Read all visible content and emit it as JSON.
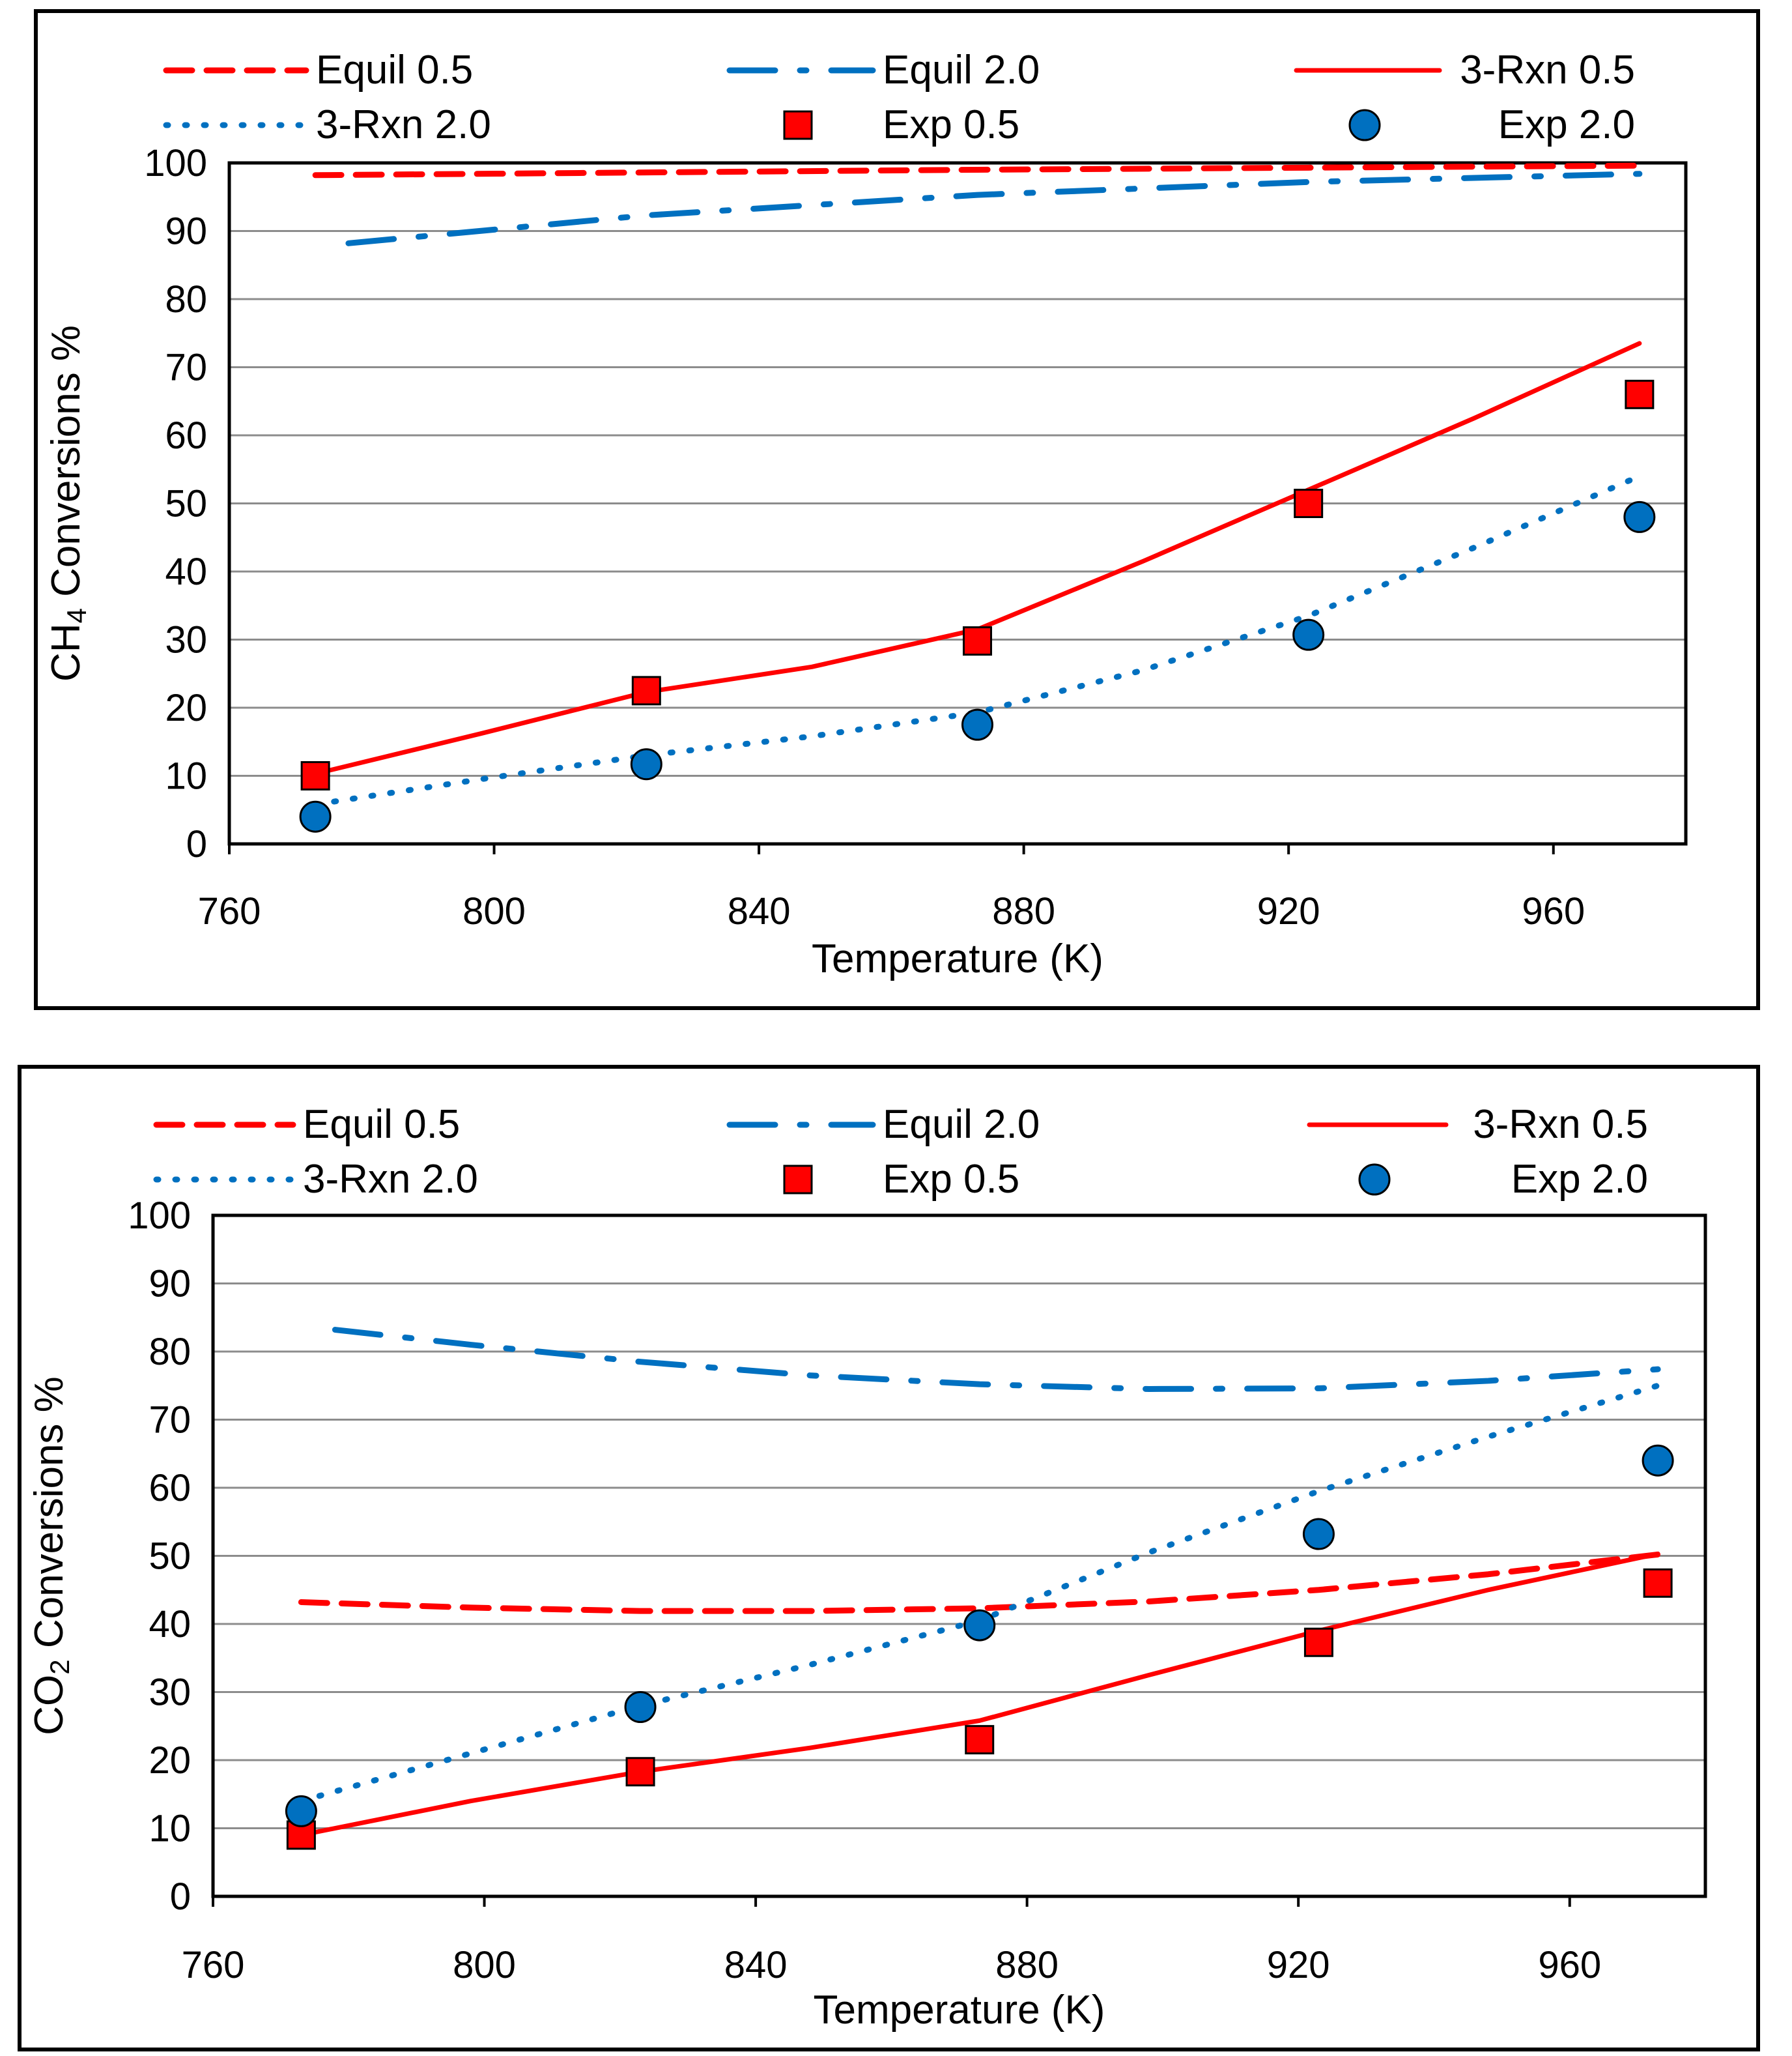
{
  "chart_data": [
    {
      "type": "line",
      "title": "",
      "xlabel": "Temperature (K)",
      "ylabel": "CH4 Conversions %",
      "xlim": [
        760,
        980
      ],
      "ylim": [
        0,
        100
      ],
      "xticks": [
        760,
        800,
        840,
        880,
        920,
        960
      ],
      "yticks": [
        0,
        10,
        20,
        30,
        40,
        50,
        60,
        70,
        80,
        90,
        100
      ],
      "grid": "horizontal",
      "legend_position": "top",
      "series": [
        {
          "name": "Equil 0.5",
          "kind": "line",
          "style": "dashed",
          "color": "#ff0000",
          "x": [
            773,
            823,
            873,
            923,
            973
          ],
          "y": [
            98.2,
            98.6,
            99.0,
            99.3,
            99.6
          ]
        },
        {
          "name": "Equil 2.0",
          "kind": "line",
          "style": "dashdot",
          "color": "#0070c0",
          "x": [
            778,
            823,
            873,
            923,
            973
          ],
          "y": [
            88.2,
            92.3,
            95.3,
            97.2,
            98.4
          ]
        },
        {
          "name": "3-Rxn 0.5",
          "kind": "line",
          "style": "solid",
          "color": "#ff0000",
          "x": [
            773,
            798,
            823,
            848,
            873,
            898,
            923,
            948,
            973
          ],
          "y": [
            10.3,
            16.2,
            22.3,
            26.0,
            31.5,
            41.5,
            52.0,
            62.5,
            73.5
          ]
        },
        {
          "name": "3-Rxn 2.0",
          "kind": "line",
          "style": "dotted",
          "color": "#0070c0",
          "x": [
            773,
            798,
            823,
            848,
            873,
            898,
            923,
            948,
            973
          ],
          "y": [
            5.8,
            9.5,
            13.0,
            15.8,
            19.3,
            25.5,
            33.5,
            43.5,
            54.0
          ]
        },
        {
          "name": "Exp 0.5",
          "kind": "marker",
          "marker": "square",
          "color": "#ff0000",
          "x": [
            773,
            823,
            873,
            923,
            973
          ],
          "y": [
            10,
            22.5,
            29.8,
            50,
            66
          ]
        },
        {
          "name": "Exp 2.0",
          "kind": "marker",
          "marker": "circle",
          "color": "#0070c0",
          "x": [
            773,
            823,
            873,
            923,
            973
          ],
          "y": [
            4,
            11.7,
            17.5,
            30.7,
            48
          ]
        }
      ]
    },
    {
      "type": "line",
      "title": "",
      "xlabel": "Temperature (K)",
      "ylabel": "CO2 Conversions %",
      "xlim": [
        760,
        980
      ],
      "ylim": [
        0,
        100
      ],
      "xticks": [
        760,
        800,
        840,
        880,
        920,
        960
      ],
      "yticks": [
        0,
        10,
        20,
        30,
        40,
        50,
        60,
        70,
        80,
        90,
        100
      ],
      "grid": "horizontal",
      "legend_position": "top",
      "series": [
        {
          "name": "Equil 0.5",
          "kind": "line",
          "style": "dashed",
          "color": "#ff0000",
          "x": [
            773,
            798,
            823,
            848,
            873,
            898,
            923,
            948,
            973
          ],
          "y": [
            43.2,
            42.4,
            41.9,
            41.9,
            42.3,
            43.3,
            45.0,
            47.3,
            50.2
          ]
        },
        {
          "name": "Equil 2.0",
          "kind": "line",
          "style": "dashdot",
          "color": "#0070c0",
          "x": [
            778,
            798,
            823,
            848,
            873,
            898,
            923,
            948,
            973
          ],
          "y": [
            83.2,
            81.0,
            78.5,
            76.5,
            75.2,
            74.5,
            74.6,
            75.7,
            77.4
          ]
        },
        {
          "name": "3-Rxn 0.5",
          "kind": "line",
          "style": "solid",
          "color": "#ff0000",
          "x": [
            773,
            798,
            823,
            848,
            873,
            898,
            923,
            948,
            973
          ],
          "y": [
            9.0,
            14.0,
            18.3,
            21.8,
            25.8,
            32.5,
            39.0,
            45.0,
            50.3
          ]
        },
        {
          "name": "3-Rxn 2.0",
          "kind": "line",
          "style": "dotted",
          "color": "#0070c0",
          "x": [
            773,
            798,
            823,
            848,
            873,
            898,
            923,
            948,
            973
          ],
          "y": [
            14.0,
            21.0,
            28.0,
            34.0,
            40.5,
            50.5,
            59.5,
            67.5,
            75.0
          ]
        },
        {
          "name": "Exp 0.5",
          "kind": "marker",
          "marker": "square",
          "color": "#ff0000",
          "x": [
            773,
            823,
            873,
            923,
            973
          ],
          "y": [
            9,
            18.3,
            23,
            37.3,
            46
          ]
        },
        {
          "name": "Exp 2.0",
          "kind": "marker",
          "marker": "circle",
          "color": "#0070c0",
          "x": [
            773,
            823,
            873,
            923,
            973
          ],
          "y": [
            12.5,
            27.8,
            39.8,
            53.2,
            64
          ]
        }
      ]
    }
  ]
}
